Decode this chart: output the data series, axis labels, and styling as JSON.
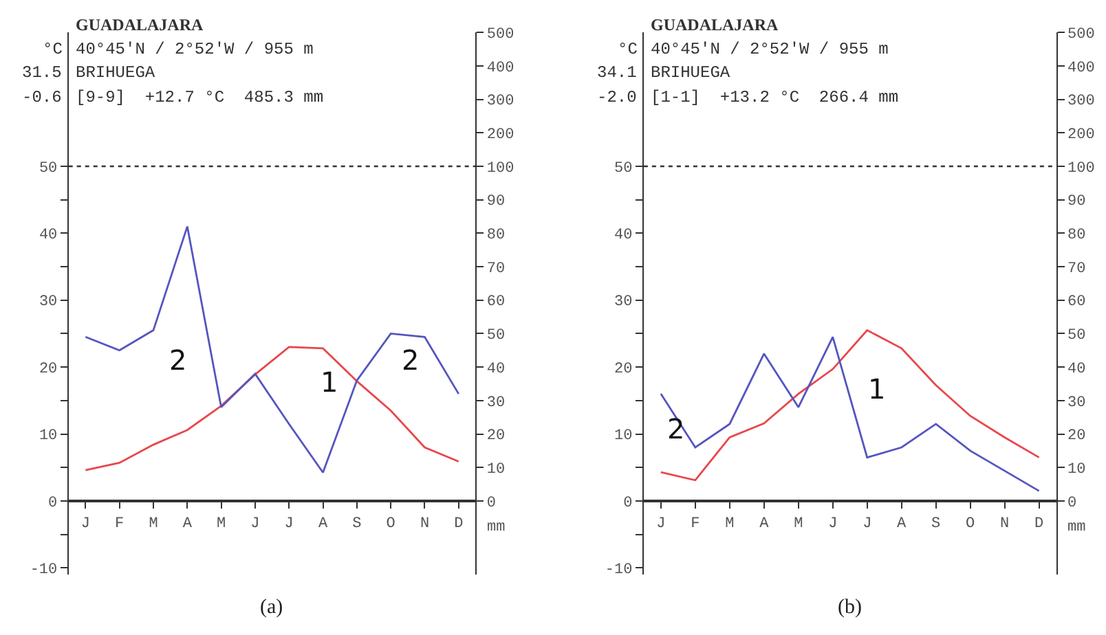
{
  "chart_data": [
    {
      "type": "line",
      "categories": [
        "J",
        "F",
        "M",
        "A",
        "M",
        "J",
        "J",
        "A",
        "S",
        "O",
        "N",
        "D"
      ],
      "series": [
        {
          "color": "#e8474b",
          "values": [
            4.6,
            5.7,
            8.4,
            10.6,
            14.2,
            18.9,
            23,
            22.8,
            17.9,
            13.5,
            8,
            5.9
          ]
        },
        {
          "color": "#5555c0",
          "axis": "y2",
          "values": [
            49,
            45,
            51,
            82,
            28,
            38,
            23,
            8.5,
            36,
            50,
            49,
            32
          ]
        }
      ],
      "ylim": [
        -11,
        70
      ],
      "yticks": [
        -10,
        {
          "value": -5,
          "label": null
        },
        0,
        {
          "value": 5,
          "label": null
        },
        10,
        {
          "value": 15,
          "label": null
        },
        20,
        {
          "value": 25,
          "label": null
        },
        30,
        {
          "value": 35,
          "label": null
        },
        40,
        {
          "value": 45,
          "label": null
        },
        50
      ],
      "y2lim": [
        -22,
        140
      ],
      "y2ticks": [
        0,
        10,
        20,
        30,
        40,
        50,
        60,
        70,
        80,
        90,
        100
      ],
      "y3lim": [
        -1120,
        500
      ],
      "y3ticks": [
        200,
        300,
        400,
        500
      ],
      "ref_lines": [
        {
          "axis": "y",
          "value": 50,
          "line_style": "dotted",
          "color": "#333333"
        }
      ],
      "grid": false,
      "marker": "none",
      "line_style": "solid",
      "annotations": [
        "GUADALAJARA",
        "°C",
        "40°45'N / 2°52'W / 955 m",
        "31.5",
        "BRIHUEGA",
        "-0.6",
        "[9-9]  +12.7 °C  485.3 mm",
        "mm",
        "(a)",
        "2",
        "1",
        "2"
      ]
    },
    {
      "type": "line",
      "categories": [
        "J",
        "F",
        "M",
        "A",
        "M",
        "J",
        "J",
        "A",
        "S",
        "O",
        "N",
        "D"
      ],
      "series": [
        {
          "color": "#e8474b",
          "values": [
            4.3,
            3.1,
            9.5,
            11.6,
            16,
            19.7,
            25.5,
            22.8,
            17.3,
            12.7,
            9.5,
            6.5
          ]
        },
        {
          "color": "#5555c0",
          "axis": "y2",
          "values": [
            32,
            16,
            23,
            44,
            28,
            49,
            13,
            16,
            23,
            15,
            9,
            3
          ]
        }
      ],
      "ylim": [
        -11,
        70
      ],
      "yticks": [
        -10,
        {
          "value": -5,
          "label": null
        },
        0,
        {
          "value": 5,
          "label": null
        },
        10,
        {
          "value": 15,
          "label": null
        },
        20,
        {
          "value": 25,
          "label": null
        },
        30,
        {
          "value": 35,
          "label": null
        },
        40,
        {
          "value": 45,
          "label": null
        },
        50
      ],
      "y2lim": [
        -22,
        140
      ],
      "y2ticks": [
        0,
        10,
        20,
        30,
        40,
        50,
        60,
        70,
        80,
        90,
        100
      ],
      "y3lim": [
        -1120,
        500
      ],
      "y3ticks": [
        200,
        300,
        400,
        500
      ],
      "ref_lines": [
        {
          "axis": "y",
          "value": 50,
          "line_style": "dotted",
          "color": "#333333"
        }
      ],
      "grid": false,
      "marker": "none",
      "line_style": "solid",
      "annotations": [
        "GUADALAJARA",
        "°C",
        "40°45'N / 2°52'W / 955 m",
        "34.1",
        "BRIHUEGA",
        "-2.0",
        "[1-1]  +13.2 °C  266.4 mm",
        "mm",
        "(b)",
        "2",
        "1"
      ]
    }
  ]
}
